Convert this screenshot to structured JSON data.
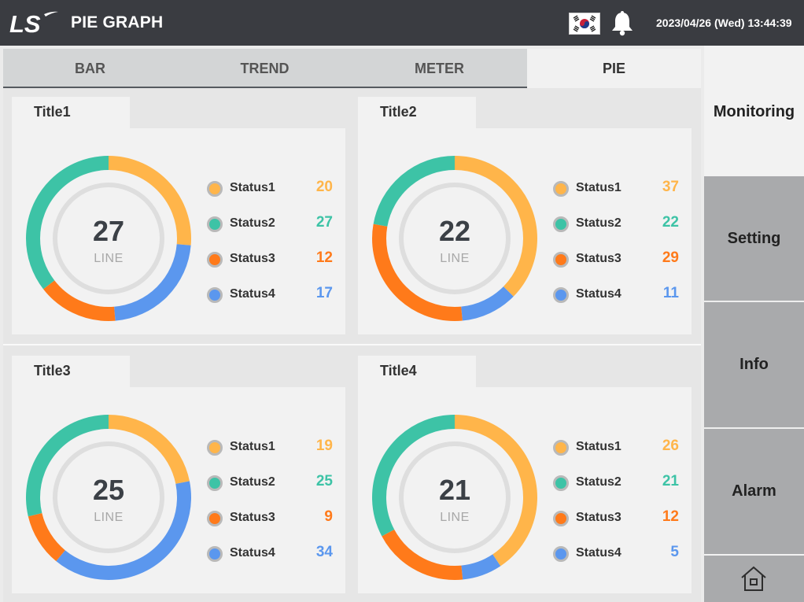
{
  "header": {
    "title": "PIE GRAPH",
    "datetime": "2023/04/26 (Wed) 13:44:39",
    "logo_text": "LS",
    "icons": {
      "flag": "korean-flag-icon",
      "bell": "bell-icon"
    }
  },
  "tabs": [
    {
      "label": "BAR",
      "active": false
    },
    {
      "label": "TREND",
      "active": false
    },
    {
      "label": "METER",
      "active": false
    },
    {
      "label": "PIE",
      "active": true
    }
  ],
  "sidebar": {
    "items": [
      "Monitoring",
      "Setting",
      "Info",
      "Alarm"
    ],
    "home_icon": "home-icon"
  },
  "colors": {
    "Status1": "#ffb54a",
    "Status2": "#3dc3a6",
    "Status3": "#ff7a1a",
    "Status4": "#5b97ee"
  },
  "chart_data": [
    {
      "type": "pie",
      "title": "Title1",
      "center_value": "27",
      "center_label": "LINE",
      "categories": [
        "Status1",
        "Status2",
        "Status3",
        "Status4"
      ],
      "values": [
        20,
        27,
        12,
        17
      ],
      "segment_order": [
        "Status1",
        "Status4",
        "Status3",
        "Status2"
      ]
    },
    {
      "type": "pie",
      "title": "Title2",
      "center_value": "22",
      "center_label": "LINE",
      "categories": [
        "Status1",
        "Status2",
        "Status3",
        "Status4"
      ],
      "values": [
        37,
        22,
        29,
        11
      ],
      "segment_order": [
        "Status1",
        "Status4",
        "Status3",
        "Status2"
      ]
    },
    {
      "type": "pie",
      "title": "Title3",
      "center_value": "25",
      "center_label": "LINE",
      "categories": [
        "Status1",
        "Status2",
        "Status3",
        "Status4"
      ],
      "values": [
        19,
        25,
        9,
        34
      ],
      "segment_order": [
        "Status1",
        "Status4",
        "Status3",
        "Status2"
      ]
    },
    {
      "type": "pie",
      "title": "Title4",
      "center_value": "21",
      "center_label": "LINE",
      "categories": [
        "Status1",
        "Status2",
        "Status3",
        "Status4"
      ],
      "values": [
        26,
        21,
        12,
        5
      ],
      "segment_order": [
        "Status1",
        "Status4",
        "Status3",
        "Status2"
      ]
    }
  ]
}
